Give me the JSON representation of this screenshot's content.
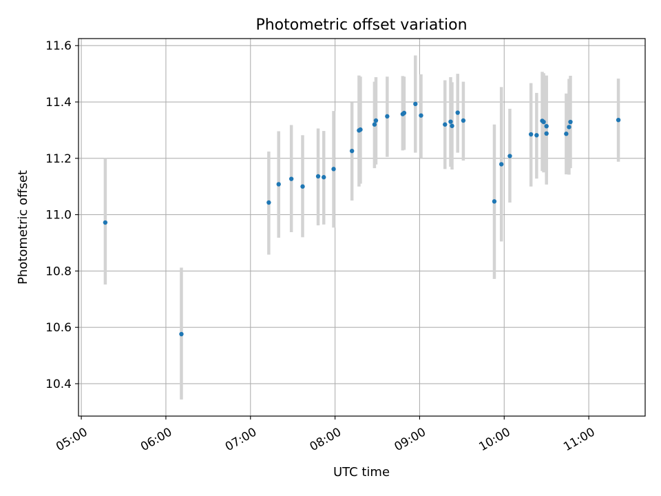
{
  "chart_data": {
    "type": "scatter",
    "title": "Photometric offset variation",
    "xlabel": "UTC time",
    "ylabel": "Photometric offset",
    "xlim": [
      "04:58",
      "11:40"
    ],
    "ylim": [
      10.285,
      11.625
    ],
    "x_ticks": [
      "05:00",
      "06:00",
      "07:00",
      "08:00",
      "09:00",
      "10:00",
      "11:00"
    ],
    "y_ticks": [
      "10.4",
      "10.6",
      "10.8",
      "11.0",
      "11.2",
      "11.4",
      "11.6"
    ],
    "grid": true,
    "point_color": "#1f77b4",
    "errorbar_color": "#d3d3d3",
    "points": [
      {
        "time": "05:17",
        "value": 10.972,
        "low": 10.752,
        "high": 11.2
      },
      {
        "time": "06:11",
        "value": 10.576,
        "low": 10.344,
        "high": 10.812
      },
      {
        "time": "07:13",
        "value": 11.043,
        "low": 10.858,
        "high": 11.224
      },
      {
        "time": "07:20",
        "value": 11.108,
        "low": 10.918,
        "high": 11.296
      },
      {
        "time": "07:29",
        "value": 11.127,
        "low": 10.938,
        "high": 11.318
      },
      {
        "time": "07:37",
        "value": 11.1,
        "low": 10.92,
        "high": 11.282
      },
      {
        "time": "07:48",
        "value": 11.136,
        "low": 10.962,
        "high": 11.306
      },
      {
        "time": "07:52",
        "value": 11.133,
        "low": 10.965,
        "high": 11.297
      },
      {
        "time": "07:59",
        "value": 11.162,
        "low": 10.954,
        "high": 11.368
      },
      {
        "time": "08:12",
        "value": 11.226,
        "low": 11.05,
        "high": 11.398
      },
      {
        "time": "08:17",
        "value": 11.299,
        "low": 11.1,
        "high": 11.494
      },
      {
        "time": "08:18",
        "value": 11.302,
        "low": 11.11,
        "high": 11.49
      },
      {
        "time": "08:28",
        "value": 11.32,
        "low": 11.165,
        "high": 11.472
      },
      {
        "time": "08:29",
        "value": 11.334,
        "low": 11.178,
        "high": 11.488
      },
      {
        "time": "08:37",
        "value": 11.349,
        "low": 11.205,
        "high": 11.49
      },
      {
        "time": "08:48",
        "value": 11.357,
        "low": 11.228,
        "high": 11.492
      },
      {
        "time": "08:49",
        "value": 11.361,
        "low": 11.23,
        "high": 11.49
      },
      {
        "time": "08:57",
        "value": 11.393,
        "low": 11.22,
        "high": 11.565
      },
      {
        "time": "09:01",
        "value": 11.352,
        "low": 11.2,
        "high": 11.498
      },
      {
        "time": "09:18",
        "value": 11.32,
        "low": 11.162,
        "high": 11.477
      },
      {
        "time": "09:22",
        "value": 11.33,
        "low": 11.17,
        "high": 11.488
      },
      {
        "time": "09:23",
        "value": 11.315,
        "low": 11.16,
        "high": 11.47
      },
      {
        "time": "09:27",
        "value": 11.362,
        "low": 11.22,
        "high": 11.5
      },
      {
        "time": "09:31",
        "value": 11.334,
        "low": 11.192,
        "high": 11.472
      },
      {
        "time": "09:53",
        "value": 11.047,
        "low": 10.772,
        "high": 11.32
      },
      {
        "time": "09:58",
        "value": 11.179,
        "low": 10.905,
        "high": 11.453
      },
      {
        "time": "10:04",
        "value": 11.208,
        "low": 11.043,
        "high": 11.376
      },
      {
        "time": "10:19",
        "value": 11.285,
        "low": 11.1,
        "high": 11.467
      },
      {
        "time": "10:23",
        "value": 11.282,
        "low": 11.128,
        "high": 11.432
      },
      {
        "time": "10:27",
        "value": 11.333,
        "low": 11.155,
        "high": 11.507
      },
      {
        "time": "10:28",
        "value": 11.329,
        "low": 11.15,
        "high": 11.502
      },
      {
        "time": "10:30",
        "value": 11.314,
        "low": 11.135,
        "high": 11.494
      },
      {
        "time": "10:30",
        "value": 11.288,
        "low": 11.107,
        "high": 11.47
      },
      {
        "time": "10:44",
        "value": 11.287,
        "low": 11.143,
        "high": 11.43
      },
      {
        "time": "10:46",
        "value": 11.311,
        "low": 11.142,
        "high": 11.482
      },
      {
        "time": "10:47",
        "value": 11.329,
        "low": 11.165,
        "high": 11.493
      },
      {
        "time": "11:21",
        "value": 11.336,
        "low": 11.188,
        "high": 11.483
      }
    ]
  }
}
